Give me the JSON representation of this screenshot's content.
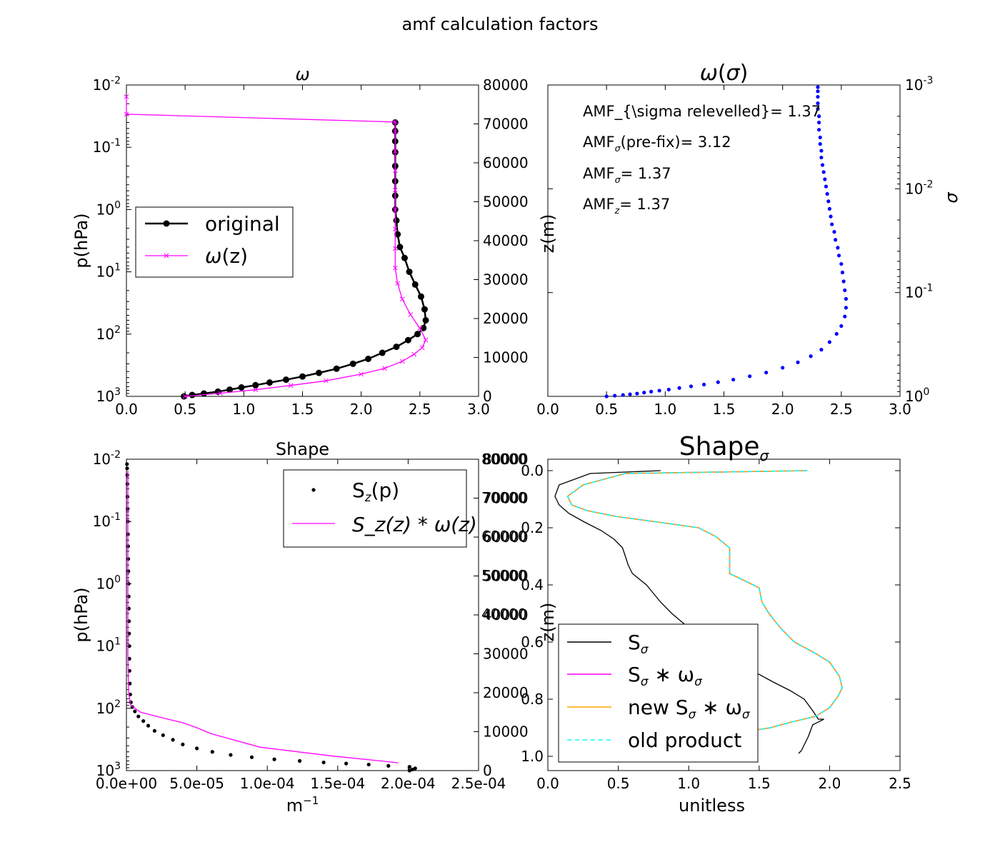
{
  "figure": {
    "suptitle": "amf calculation factors"
  },
  "chart_data": [
    {
      "id": "omega",
      "type": "line",
      "title": "ω",
      "xlabel": "",
      "ylabel_left": "p(hPa)",
      "ylabel_right": "",
      "xlim": [
        0,
        3.0
      ],
      "ylim_left_log": [
        1000,
        0.01
      ],
      "ylim_right": [
        0,
        80000
      ],
      "y_left_scale": "log-inverted",
      "x_ticks": [
        "0.0",
        "0.5",
        "1.0",
        "1.5",
        "2.0",
        "2.5",
        "3.0"
      ],
      "y_left_ticks": [
        {
          "base": "10",
          "exp": "-2",
          "value": 0.01
        },
        {
          "base": "10",
          "exp": "-1",
          "value": 0.1
        },
        {
          "base": "10",
          "exp": "0",
          "value": 1
        },
        {
          "base": "10",
          "exp": "1",
          "value": 10
        },
        {
          "base": "10",
          "exp": "2",
          "value": 100
        },
        {
          "base": "10",
          "exp": "3",
          "value": 1000
        }
      ],
      "y_right_ticks": [
        "0",
        "10000",
        "20000",
        "30000",
        "40000",
        "50000",
        "60000",
        "70000",
        "80000"
      ],
      "legend": {
        "position": "center-left",
        "entries": [
          {
            "label": "original",
            "color": "#000000",
            "marker": "circle"
          },
          {
            "label_omega": "ω",
            "label_rest": "(z)",
            "color": "#ff00ff",
            "marker": "x"
          }
        ]
      },
      "series": [
        {
          "name": "original",
          "color": "#000000",
          "axis": "log-p",
          "x": [
            0.49,
            0.56,
            0.66,
            0.78,
            0.88,
            0.98,
            1.1,
            1.22,
            1.36,
            1.5,
            1.64,
            1.79,
            1.93,
            2.06,
            2.18,
            2.3,
            2.4,
            2.48,
            2.53,
            2.55,
            2.54,
            2.51,
            2.46,
            2.41,
            2.37,
            2.33,
            2.31,
            2.3,
            2.29,
            2.29,
            2.29,
            2.29,
            2.29,
            2.29,
            2.29,
            2.29
          ],
          "y": [
            1000,
            950,
            900,
            840,
            780,
            720,
            660,
            600,
            540,
            480,
            420,
            360,
            300,
            250,
            200,
            160,
            125,
            100,
            80,
            60,
            40,
            25,
            16,
            10,
            6,
            4,
            2.5,
            1.5,
            1.0,
            0.6,
            0.35,
            0.2,
            0.12,
            0.08,
            0.055,
            0.04
          ]
        },
        {
          "name": "ω(z)",
          "color": "#ff00ff",
          "axis": "z",
          "x": [
            0.5,
            0.8,
            1.1,
            1.4,
            1.7,
            2.0,
            2.2,
            2.35,
            2.45,
            2.52,
            2.55,
            2.5,
            2.42,
            2.35,
            2.31,
            2.29,
            2.29,
            2.29,
            2.29,
            2.29,
            2.29,
            2.29,
            2.29,
            2.29,
            0.0,
            0.0
          ],
          "y": [
            0,
            800,
            1700,
            2800,
            4000,
            5700,
            7200,
            9000,
            10800,
            12500,
            14500,
            17500,
            21000,
            25000,
            29000,
            33000,
            38000,
            43000,
            48000,
            53000,
            58000,
            63000,
            68000,
            70500,
            72500,
            77000
          ]
        }
      ]
    },
    {
      "id": "omega-sigma",
      "type": "scatter",
      "title": "ω(σ)",
      "xlabel": "",
      "ylabel_left": "z(m)",
      "ylabel_right": "σ",
      "xlim": [
        0,
        3.0
      ],
      "ylim_right_log": [
        1,
        0.001
      ],
      "x_ticks": [
        "0.0",
        "0.5",
        "1.0",
        "1.5",
        "2.0",
        "2.5",
        "3.0"
      ],
      "y_right_ticks": [
        {
          "base": "10",
          "exp": "-3",
          "value": 0.001
        },
        {
          "base": "10",
          "exp": "-2",
          "value": 0.01
        },
        {
          "base": "10",
          "exp": "-1",
          "value": 0.1
        },
        {
          "base": "10",
          "exp": "0",
          "value": 1
        }
      ],
      "annotations": [
        {
          "type": "plain",
          "text": "AMF_{\\sigma relevelled}= 1.37"
        },
        {
          "type": "sub",
          "base": "AMF",
          "sub": "σ",
          "rest": "(pre-fix)= 3.12"
        },
        {
          "type": "sub",
          "base": "AMF",
          "sub": "σ",
          "rest": "= 1.37"
        },
        {
          "type": "sub",
          "base": "AMF",
          "sub": "z",
          "rest": "= 1.37"
        }
      ],
      "series": [
        {
          "name": "",
          "color": "#0000ff",
          "x": [
            0.5,
            0.57,
            0.64,
            0.7,
            0.76,
            0.82,
            0.88,
            0.95,
            1.03,
            1.12,
            1.22,
            1.33,
            1.45,
            1.58,
            1.72,
            1.86,
            2.0,
            2.13,
            2.24,
            2.33,
            2.4,
            2.46,
            2.5,
            2.53,
            2.54,
            2.54,
            2.53,
            2.52,
            2.51,
            2.5,
            2.48,
            2.47,
            2.45,
            2.44,
            2.42,
            2.41,
            2.4,
            2.39,
            2.38,
            2.37,
            2.36,
            2.35,
            2.34,
            2.33,
            2.33,
            2.32,
            2.32,
            2.31,
            2.31,
            2.31,
            2.3,
            2.3,
            2.3,
            2.3,
            2.3
          ],
          "y": [
            1.0,
            0.985,
            0.97,
            0.955,
            0.94,
            0.92,
            0.9,
            0.88,
            0.86,
            0.83,
            0.8,
            0.77,
            0.73,
            0.69,
            0.64,
            0.59,
            0.53,
            0.47,
            0.41,
            0.355,
            0.3,
            0.25,
            0.21,
            0.17,
            0.14,
            0.115,
            0.095,
            0.078,
            0.064,
            0.053,
            0.044,
            0.037,
            0.031,
            0.026,
            0.022,
            0.0185,
            0.0156,
            0.0132,
            0.0112,
            0.0095,
            0.0081,
            0.0069,
            0.0059,
            0.005,
            0.0043,
            0.0037,
            0.0032,
            0.0027,
            0.0023,
            0.002,
            0.0017,
            0.0015,
            0.0013,
            0.00115,
            0.00105
          ]
        }
      ]
    },
    {
      "id": "shape",
      "type": "line",
      "title": "Shape",
      "xlabel_base": "m",
      "xlabel_sup": "−1",
      "ylabel_left": "p(hPa)",
      "ylabel_right": "",
      "xlim": [
        0,
        0.00025
      ],
      "ylim_left_log": [
        1000,
        0.01
      ],
      "ylim_right": [
        0,
        80000
      ],
      "x_ticks": [
        "0.0e+00",
        "5.0e-05",
        "1.0e-04",
        "1.5e-04",
        "2.0e-04",
        "2.5e-04"
      ],
      "y_left_ticks": [
        {
          "base": "10",
          "exp": "-2",
          "value": 0.01
        },
        {
          "base": "10",
          "exp": "-1",
          "value": 0.1
        },
        {
          "base": "10",
          "exp": "0",
          "value": 1
        },
        {
          "base": "10",
          "exp": "1",
          "value": 10
        },
        {
          "base": "10",
          "exp": "2",
          "value": 100
        },
        {
          "base": "10",
          "exp": "3",
          "value": 1000
        }
      ],
      "y_right_ticks": [
        "0",
        "10000",
        "20000",
        "30000",
        "40000",
        "50000",
        "60000",
        "70000",
        "80000"
      ],
      "legend": {
        "position": "upper-right",
        "entries": [
          {
            "base": "S",
            "sub": "z",
            "rest": "(p)",
            "color": "#000000",
            "marker": "dot"
          },
          {
            "math": "S_z(z) * ω(z)",
            "color": "#ff00ff",
            "marker": "line"
          }
        ]
      },
      "series": [
        {
          "name": "S_z(p)",
          "color": "#000000",
          "axis": "log-p",
          "x": [
            0.000201,
            0.000203,
            0.000205,
            0.000201,
            0.000186,
            0.000172,
            0.000156,
            0.00014,
            0.000123,
            0.000105,
            8.9e-05,
            7.4e-05,
            6.1e-05,
            5e-05,
            4e-05,
            3.3e-05,
            2.6e-05,
            2e-05,
            1.55e-05,
            1.2e-05,
            8.5e-06,
            6e-06,
            4.2e-06,
            3.2e-06,
            2.7e-06,
            2.4e-06,
            2.2e-06,
            2.1e-06,
            2e-06,
            1.9e-06,
            1.8e-06,
            1.7e-06,
            1.6e-06,
            1.5e-06,
            1.4e-06,
            1.3e-06,
            1.2e-06,
            1.1e-06,
            1e-06,
            9e-07,
            8e-07,
            7e-07,
            6e-07,
            5e-07,
            4e-07
          ],
          "y": [
            1000,
            960,
            920,
            870,
            840,
            800,
            770,
            740,
            700,
            660,
            610,
            560,
            500,
            440,
            380,
            320,
            270,
            230,
            190,
            160,
            135,
            112,
            95,
            80,
            60,
            40,
            25,
            16,
            10,
            6.3,
            4,
            2.5,
            1.6,
            1.0,
            0.63,
            0.4,
            0.25,
            0.16,
            0.1,
            0.063,
            0.04,
            0.025,
            0.018,
            0.014,
            0.012
          ]
        },
        {
          "name": "S_z(z)*ω(z)",
          "color": "#ff00ff",
          "axis": "z",
          "x": [
            0.000193,
            0.00018,
            0.000145,
            9.5e-05,
            6e-05,
            5e-05,
            4e-05,
            2.5e-05,
            1e-05,
            3e-06,
            1.5e-06,
            1e-06,
            1e-06,
            1e-06
          ],
          "y": [
            2000,
            2500,
            3800,
            6000,
            9500,
            11000,
            12300,
            13600,
            15000,
            16800,
            20000,
            30000,
            50000,
            77000
          ]
        }
      ]
    },
    {
      "id": "shape-sigma",
      "type": "line",
      "title": "Shape",
      "title_sub": "σ",
      "xlabel": "unitless",
      "ylabel_left": "z(m)",
      "xlim": [
        0,
        2.5
      ],
      "ylim": [
        1.05,
        -0.04
      ],
      "x_ticks": [
        "0.0",
        "0.5",
        "1.0",
        "1.5",
        "2.0",
        "2.5"
      ],
      "y_ticks": [
        "0.0",
        "0.2",
        "0.4",
        "0.6",
        "0.8",
        "1.0"
      ],
      "y_right_ticks_ghost": [
        "80000",
        "70000",
        "60000",
        "50000",
        "40000"
      ],
      "legend": {
        "position": "lower-left",
        "entries": [
          {
            "base": "S",
            "sub": "σ",
            "rest": "",
            "color": "#000000",
            "style": "solid"
          },
          {
            "base": "S",
            "sub": "σ",
            "rest": " ∗ ω",
            "rest_sub": "σ",
            "color": "#ff00ff",
            "style": "solid"
          },
          {
            "prefix": "new ",
            "base": "S",
            "sub": "σ",
            "rest": " ∗ ω",
            "rest_sub": "σ",
            "color": "#ffa500",
            "style": "solid"
          },
          {
            "plain": "old product",
            "color": "#00ffff",
            "style": "dashed"
          }
        ]
      },
      "series": [
        {
          "name": "S_σ",
          "color": "#000000",
          "x": [
            0.8,
            0.3,
            0.08,
            0.05,
            0.08,
            0.15,
            0.26,
            0.38,
            0.47,
            0.53,
            0.55,
            0.57,
            0.6,
            0.7,
            0.75,
            0.8,
            0.88,
            1.0,
            1.15,
            1.3,
            1.45,
            1.6,
            1.72,
            1.82,
            1.88,
            1.92,
            1.96,
            1.88,
            1.85,
            1.82,
            1.8,
            1.78
          ],
          "y": [
            0.0,
            0.01,
            0.05,
            0.09,
            0.12,
            0.15,
            0.18,
            0.21,
            0.24,
            0.27,
            0.3,
            0.33,
            0.36,
            0.4,
            0.43,
            0.46,
            0.5,
            0.55,
            0.6,
            0.65,
            0.7,
            0.74,
            0.77,
            0.8,
            0.84,
            0.87,
            0.87,
            0.89,
            0.93,
            0.96,
            0.98,
            0.99
          ]
        },
        {
          "name": "S_σ*ω_σ",
          "color": "#ff00ff",
          "x": [
            1.84,
            0.55,
            0.25,
            0.14,
            0.17,
            0.28,
            0.48,
            0.78,
            1.07,
            1.19,
            1.29,
            1.29,
            1.5,
            1.52,
            1.57,
            1.65,
            1.75,
            1.9,
            2.0,
            2.07,
            2.09,
            2.06,
            2.0,
            1.9,
            1.73,
            1.58,
            1.45
          ],
          "y": [
            0.0,
            0.01,
            0.05,
            0.09,
            0.12,
            0.14,
            0.16,
            0.18,
            0.2,
            0.23,
            0.27,
            0.36,
            0.41,
            0.46,
            0.5,
            0.55,
            0.6,
            0.64,
            0.67,
            0.72,
            0.76,
            0.79,
            0.83,
            0.86,
            0.88,
            0.9,
            0.91
          ]
        },
        {
          "name": "new S_σ*ω_σ",
          "color": "#ffa500",
          "x": [
            1.84,
            0.55,
            0.25,
            0.14,
            0.17,
            0.28,
            0.48,
            0.78,
            1.07,
            1.19,
            1.29,
            1.29,
            1.5,
            1.52,
            1.57,
            1.65,
            1.75,
            1.9,
            2.0,
            2.07,
            2.09,
            2.06,
            2.0,
            1.9,
            1.73,
            1.58,
            1.45
          ],
          "y": [
            0.0,
            0.01,
            0.05,
            0.09,
            0.12,
            0.14,
            0.16,
            0.18,
            0.2,
            0.23,
            0.27,
            0.36,
            0.41,
            0.46,
            0.5,
            0.55,
            0.6,
            0.64,
            0.67,
            0.72,
            0.76,
            0.79,
            0.83,
            0.86,
            0.88,
            0.9,
            0.91
          ]
        },
        {
          "name": "old product",
          "color": "#00ffff",
          "x": [
            1.84,
            0.55,
            0.25,
            0.14,
            0.17,
            0.28,
            0.48,
            0.78,
            1.07,
            1.19,
            1.29,
            1.29,
            1.5,
            1.52,
            1.57,
            1.65,
            1.75,
            1.9,
            2.0,
            2.07,
            2.09,
            2.06,
            2.0,
            1.9,
            1.73,
            1.58,
            1.45
          ],
          "y": [
            0.0,
            0.01,
            0.05,
            0.09,
            0.12,
            0.14,
            0.16,
            0.18,
            0.2,
            0.23,
            0.27,
            0.36,
            0.41,
            0.46,
            0.5,
            0.55,
            0.6,
            0.64,
            0.67,
            0.72,
            0.76,
            0.79,
            0.83,
            0.86,
            0.88,
            0.9,
            0.91
          ]
        }
      ]
    }
  ]
}
